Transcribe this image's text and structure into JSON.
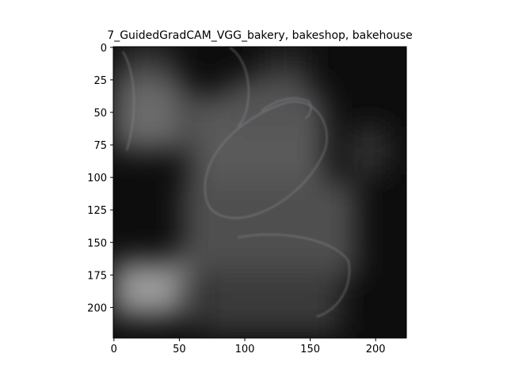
{
  "chart_data": {
    "type": "image",
    "title": "7_GuidedGradCAM_VGG_bakery, bakeshop, bakehouse",
    "xlim": [
      -0.5,
      223.5
    ],
    "ylim": [
      223.5,
      -0.5
    ],
    "xticks": [
      0,
      50,
      100,
      150,
      200
    ],
    "yticks": [
      0,
      25,
      50,
      75,
      100,
      125,
      150,
      175,
      200
    ]
  }
}
